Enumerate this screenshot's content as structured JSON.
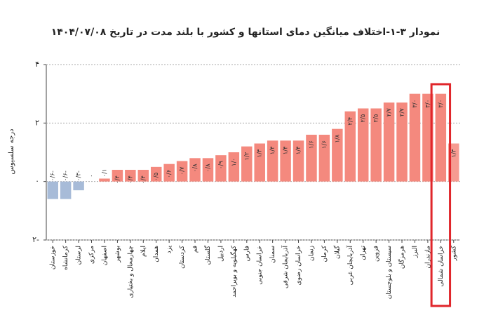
{
  "chart_data": {
    "type": "bar",
    "title": "نمودار ۳-۱-اختلاف میانگین دمای استانها و کشور با بلند مدت در تاریخ ۱۴۰۴/۰۷/۰۸",
    "y_label": "درجه سلسیوس",
    "categories": [
      "خوزستان",
      "کرمانشاه",
      "لرستان",
      "مرکزی",
      "اصفهان",
      "بوشهر",
      "چهارمحال و بختیاری",
      "ایلام",
      "همدان",
      "یزد",
      "کردستان",
      "قم",
      "گلستان",
      "اردبیل",
      "کهگیلویه و بویراحمد",
      "فارس",
      "خراسان جنوبی",
      "سمنان",
      "آذربایجان شرقی",
      "خراسان رضوی",
      "زنجان",
      "کرمان",
      "گیلان",
      "آذربایجان غربی",
      "تهران",
      "قزوین",
      "سیستان و بلوچستان",
      "هرمزگان",
      "البرز",
      "مازندران",
      "خراسان شمالی",
      "کشور"
    ],
    "values": [
      -0.6,
      -0.6,
      -0.3,
      0.0,
      0.1,
      0.4,
      0.4,
      0.4,
      0.5,
      0.6,
      0.7,
      0.8,
      0.8,
      0.9,
      1.0,
      1.2,
      1.3,
      1.4,
      1.4,
      1.4,
      1.6,
      1.6,
      1.8,
      2.4,
      2.5,
      2.5,
      2.7,
      2.7,
      3.0,
      3.0,
      3.0,
      1.3
    ],
    "value_labels": [
      "۰/۶-",
      "۰/۶-",
      "۰/۳-",
      "۰",
      "۰/۱",
      "۰/۴",
      "۰/۴",
      "۰/۴",
      "۰/۵",
      "۰/۶",
      "۰/۷",
      "۰/۸",
      "۰/۸",
      "۰/۹",
      "۱/۰",
      "۱/۲",
      "۱/۳",
      "۱/۴",
      "۱/۴",
      "۱/۴",
      "۱/۶",
      "۱/۶",
      "۱/۸",
      "۲/۴",
      "۲/۵",
      "۲/۵",
      "۲/۷",
      "۲/۷",
      "۳/۰",
      "۳/۰",
      "۳/۰",
      "۱/۳"
    ],
    "color": "#f4897e",
    "negative_color": "#a7bbd8",
    "ylim": [
      -2,
      4
    ],
    "yticks": [
      {
        "value": -2,
        "label": "۲-"
      },
      {
        "value": 0,
        "label": "۰"
      },
      {
        "value": 2,
        "label": "۲"
      },
      {
        "value": 4,
        "label": "۴"
      }
    ],
    "grid": true,
    "highlight_index": 30
  }
}
